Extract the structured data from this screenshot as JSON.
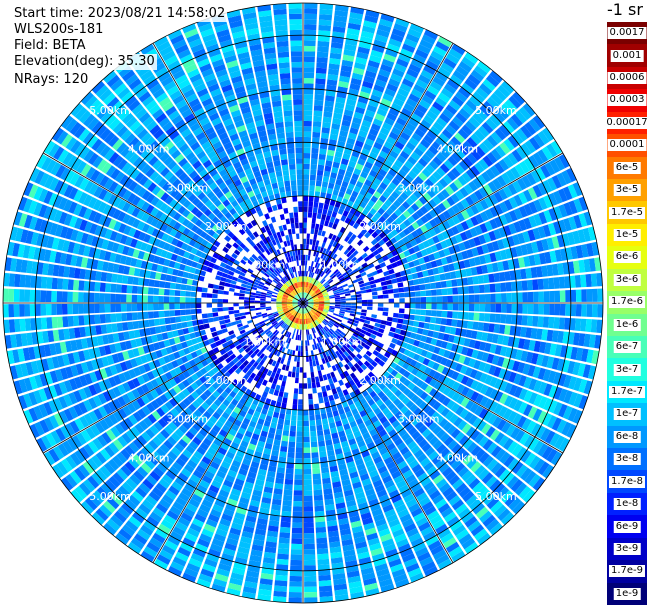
{
  "info": {
    "start_time": "Start time: 2023/08/21 14:58:02",
    "device": "WLS200s-181",
    "field": "Field: BETA",
    "elevation": "Elevation(deg): 35.30",
    "nrays": "NRays: 120"
  },
  "chart_data": {
    "type": "heatmap",
    "projection": "polar-ppi",
    "field": "BETA",
    "nrays": 120,
    "elevation_deg": 35.3,
    "max_range_km": 5.6,
    "ring_labels": [
      "1.00km",
      "2.00km",
      "3.00km",
      "4.00km",
      "5.00km"
    ],
    "ring_values_km": [
      1,
      2,
      3,
      4,
      5
    ],
    "colorbar": {
      "unit": "-1 sr",
      "scale": "log",
      "labels": [
        "0.0017",
        "0.001",
        "0.0006",
        "0.0003",
        "0.00017",
        "0.0001",
        "6e-5",
        "3e-5",
        "1.7e-5",
        "1e-5",
        "6e-6",
        "3e-6",
        "1.7e-6",
        "1e-6",
        "6e-7",
        "3e-7",
        "1.7e-7",
        "1e-7",
        "6e-8",
        "3e-8",
        "1.7e-8",
        "1e-8",
        "6e-9",
        "3e-9",
        "1.7e-9",
        "1e-9"
      ],
      "colors": [
        "#7a0000",
        "#a00000",
        "#c80000",
        "#f00000",
        "#ff2000",
        "#ff5000",
        "#ff7a00",
        "#ffa000",
        "#ffc800",
        "#ffee00",
        "#e6ff10",
        "#c0ff40",
        "#98ff68",
        "#70ff90",
        "#48ffb8",
        "#20ffe0",
        "#00e8ff",
        "#00c0ff",
        "#0098ff",
        "#0070ff",
        "#0048ff",
        "#0020ff",
        "#0000f0",
        "#0000c8",
        "#0000a0",
        "#000078"
      ]
    },
    "features": [
      {
        "desc": "high backscatter ring",
        "range_km": [
          0.2,
          0.45
        ],
        "value_range": [
          1e-06,
          0.0001
        ]
      },
      {
        "desc": "background",
        "value_range": [
          1e-08,
          1e-07
        ]
      }
    ]
  }
}
